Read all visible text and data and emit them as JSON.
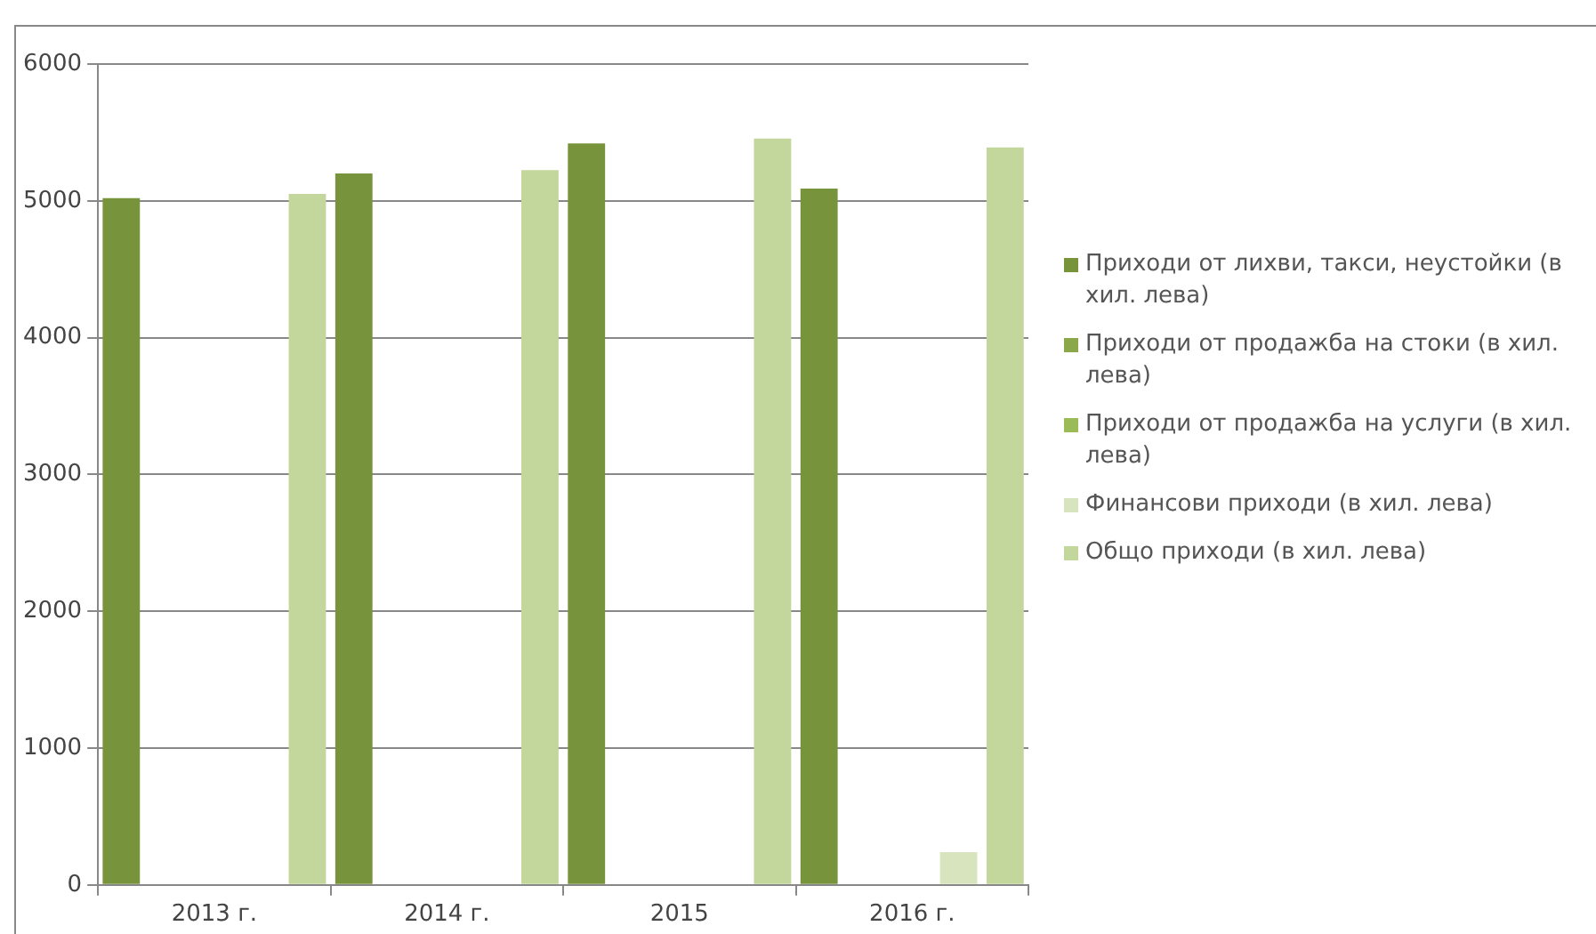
{
  "chart_data": {
    "type": "bar",
    "categories": [
      "2013 г.",
      "2014 г.",
      "2015",
      "2016 г."
    ],
    "series": [
      {
        "name": "Приходи от лихви, такси, неустойки (в хил. лева)",
        "color": "#77933c",
        "values": [
          5020,
          5200,
          5420,
          5090
        ]
      },
      {
        "name": "Приходи от продажба на стоки (в хил. лева)",
        "color": "#8aa84a",
        "values": [
          0,
          0,
          0,
          0
        ]
      },
      {
        "name": "Приходи от продажба на услуги (в хил. лева)",
        "color": "#9bbb59",
        "values": [
          0,
          0,
          0,
          0
        ]
      },
      {
        "name": "Финансови приходи  (в хил. лева)",
        "color": "#d7e4bd",
        "values": [
          0,
          0,
          0,
          240
        ]
      },
      {
        "name": "Общо приходи  (в хил. лева)",
        "color": "#c3d69b",
        "values": [
          5050,
          5225,
          5455,
          5390
        ]
      }
    ],
    "ylim": [
      0,
      6000
    ],
    "yticks": [
      0,
      1000,
      2000,
      3000,
      4000,
      5000,
      6000
    ],
    "grid": "y",
    "legend": "right"
  }
}
